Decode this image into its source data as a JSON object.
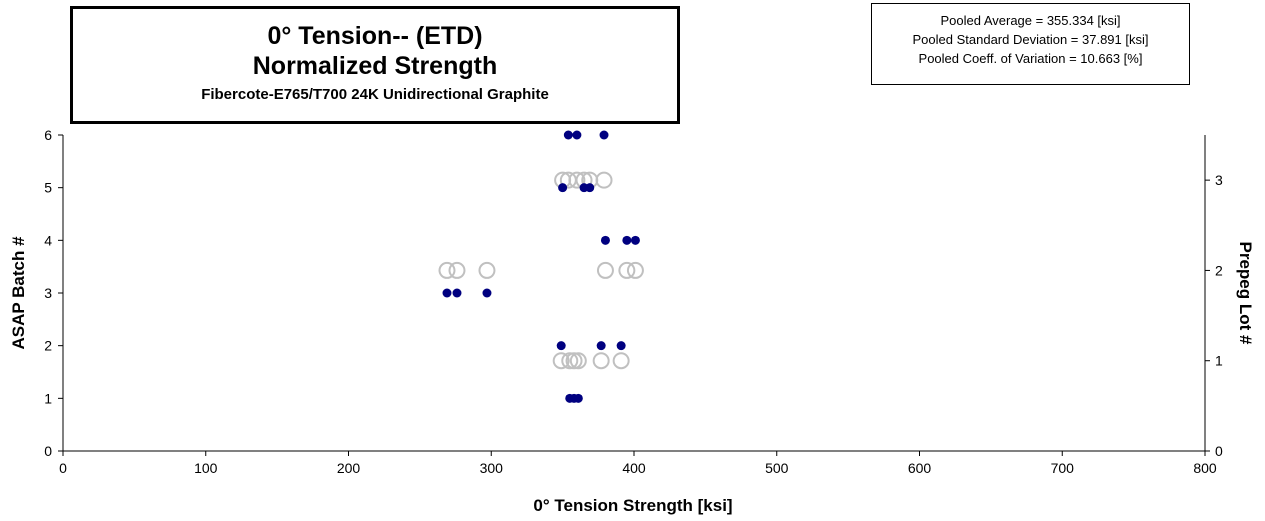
{
  "title_box": {
    "line1": "0° Tension-- (ETD)",
    "line2": "Normalized Strength",
    "line3": "Fibercote-E765/T700 24K Unidirectional Graphite"
  },
  "stats_box": {
    "line1": "Pooled Average = 355.334 [ksi]",
    "line2": "Pooled Standard Deviation = 37.891  [ksi]",
    "line3": "Pooled Coeff. of  Variation = 10.663 [%]"
  },
  "chart_data": {
    "type": "scatter",
    "xlabel": "0° Tension Strength  [ksi]",
    "ylabel": "ASAP Batch #",
    "y2label": "Prepeg Lot #",
    "xlim": [
      0,
      800
    ],
    "ylim": [
      0,
      6
    ],
    "y2lim": [
      0,
      3.5
    ],
    "x_ticks": [
      0,
      100,
      200,
      300,
      400,
      500,
      600,
      700,
      800
    ],
    "y_ticks": [
      0,
      1,
      2,
      3,
      4,
      5,
      6
    ],
    "y2_ticks": [
      0,
      1,
      2,
      3
    ],
    "grid": false,
    "colors": {
      "batch": "#000080",
      "lot": "#c0c0c0"
    },
    "series": [
      {
        "axis": "left",
        "marker": "filled-circle",
        "points": [
          {
            "x": 355,
            "y": 1
          },
          {
            "x": 358,
            "y": 1
          },
          {
            "x": 361,
            "y": 1
          },
          {
            "x": 349,
            "y": 2
          },
          {
            "x": 377,
            "y": 2
          },
          {
            "x": 391,
            "y": 2
          },
          {
            "x": 269,
            "y": 3
          },
          {
            "x": 276,
            "y": 3
          },
          {
            "x": 297,
            "y": 3
          },
          {
            "x": 380,
            "y": 4
          },
          {
            "x": 395,
            "y": 4
          },
          {
            "x": 401,
            "y": 4
          },
          {
            "x": 350,
            "y": 5
          },
          {
            "x": 365,
            "y": 5
          },
          {
            "x": 369,
            "y": 5
          },
          {
            "x": 354,
            "y": 6
          },
          {
            "x": 360,
            "y": 6
          },
          {
            "x": 379,
            "y": 6
          }
        ]
      },
      {
        "axis": "right",
        "marker": "open-circle",
        "points": [
          {
            "x": 349,
            "y": 1
          },
          {
            "x": 355,
            "y": 1
          },
          {
            "x": 358,
            "y": 1
          },
          {
            "x": 361,
            "y": 1
          },
          {
            "x": 377,
            "y": 1
          },
          {
            "x": 391,
            "y": 1
          },
          {
            "x": 269,
            "y": 2
          },
          {
            "x": 276,
            "y": 2
          },
          {
            "x": 297,
            "y": 2
          },
          {
            "x": 380,
            "y": 2
          },
          {
            "x": 395,
            "y": 2
          },
          {
            "x": 401,
            "y": 2
          },
          {
            "x": 350,
            "y": 3
          },
          {
            "x": 354,
            "y": 3
          },
          {
            "x": 360,
            "y": 3
          },
          {
            "x": 365,
            "y": 3
          },
          {
            "x": 369,
            "y": 3
          },
          {
            "x": 379,
            "y": 3
          }
        ]
      }
    ]
  }
}
